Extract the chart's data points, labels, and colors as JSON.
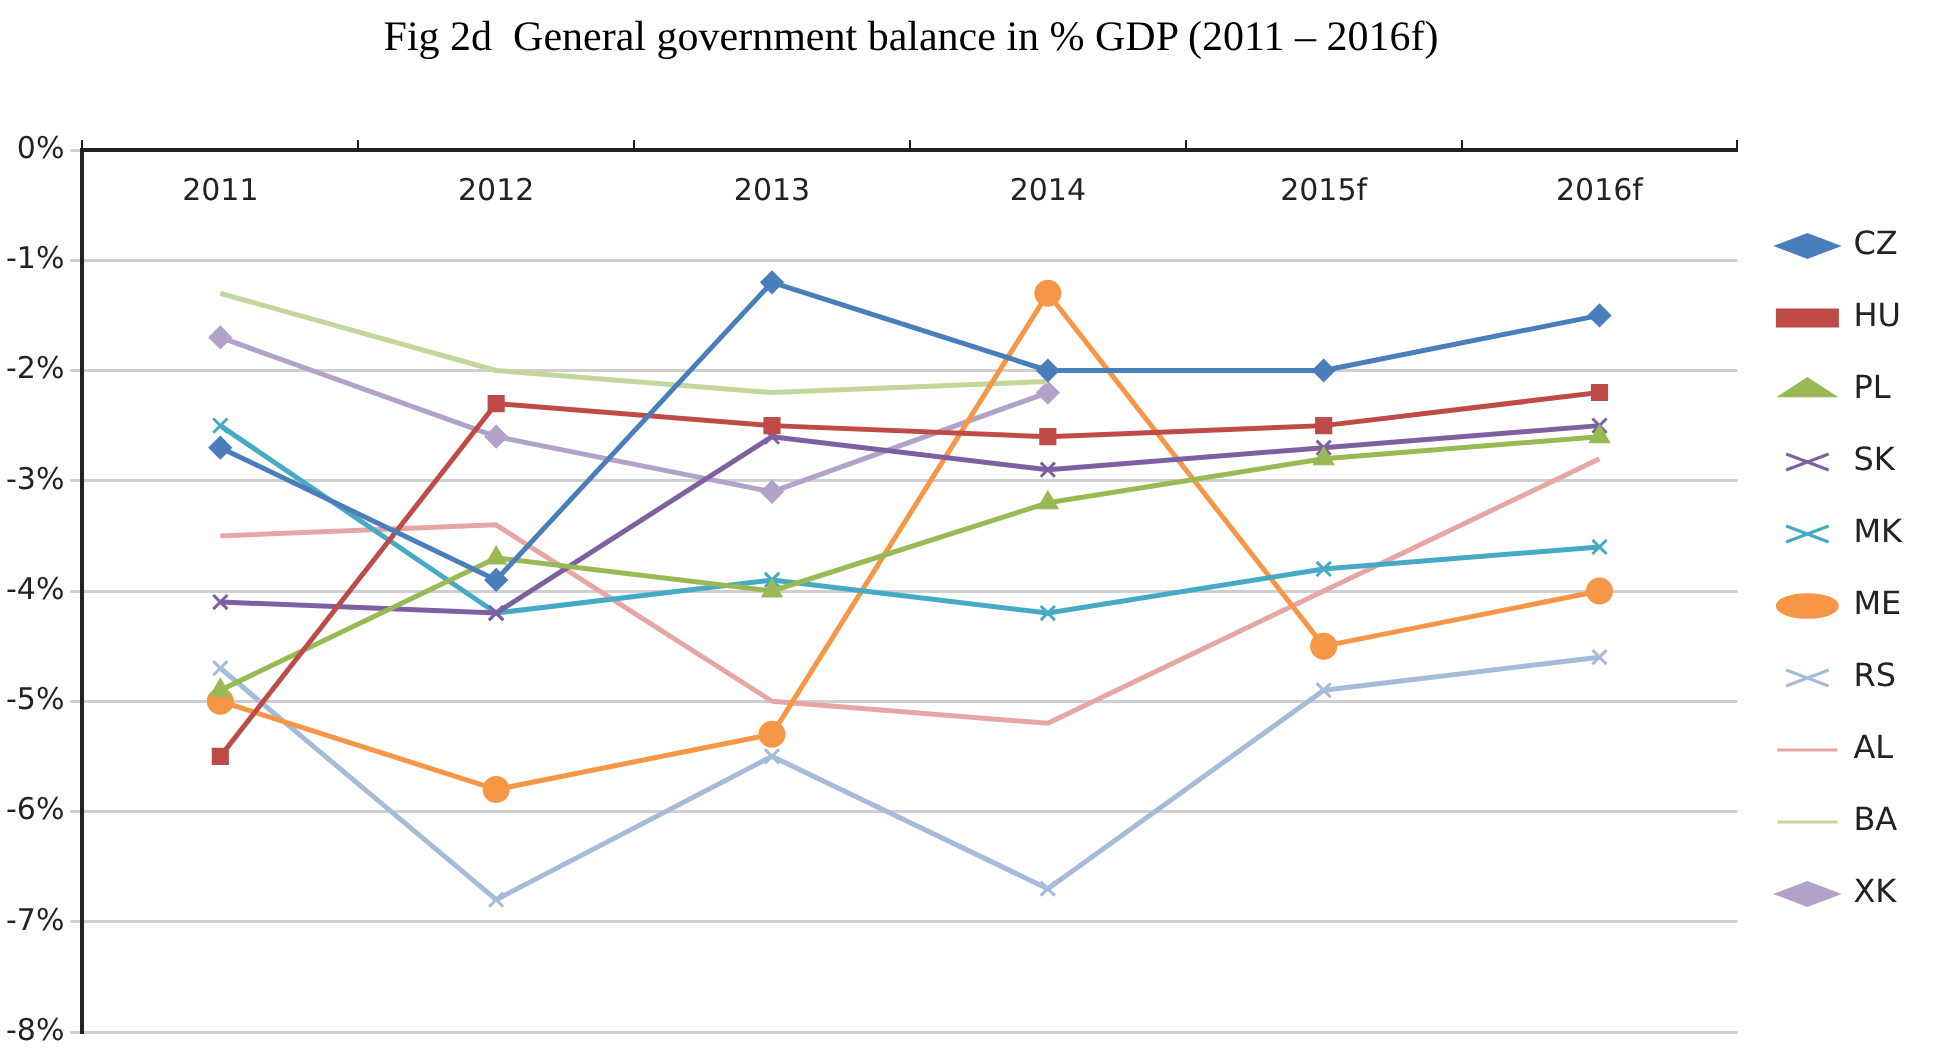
{
  "chart_data": {
    "type": "line",
    "title": "Fig 2d  General government balance in % GDP (2011 – 2016f)",
    "categories": [
      "2011",
      "2012",
      "2013",
      "2014",
      "2015f",
      "2016f"
    ],
    "ylim": [
      -8,
      0
    ],
    "yticks": [
      {
        "value": 0,
        "label": "0%"
      },
      {
        "value": -1,
        "label": "-1%"
      },
      {
        "value": -2,
        "label": "-2%"
      },
      {
        "value": -3,
        "label": "-3%"
      },
      {
        "value": -4,
        "label": "-4%"
      },
      {
        "value": -5,
        "label": "-5%"
      },
      {
        "value": -6,
        "label": "-6%"
      },
      {
        "value": -7,
        "label": "-7%"
      },
      {
        "value": -8,
        "label": "-8%"
      }
    ],
    "grid": "y",
    "legend": "right",
    "series": [
      {
        "name": "CZ",
        "color": "#4a7ebb",
        "marker": "diamond",
        "values": [
          -2.7,
          -3.9,
          -1.2,
          -2.0,
          -2.0,
          -1.5
        ]
      },
      {
        "name": "HU",
        "color": "#be4b48",
        "marker": "square",
        "values": [
          -5.5,
          -2.3,
          -2.5,
          -2.6,
          -2.5,
          -2.2
        ]
      },
      {
        "name": "PL",
        "color": "#98b954",
        "marker": "triangle",
        "values": [
          -4.9,
          -3.7,
          -4.0,
          -3.2,
          -2.8,
          -2.6
        ]
      },
      {
        "name": "SK",
        "color": "#7d60a0",
        "marker": "cross",
        "values": [
          -4.1,
          -4.2,
          -2.6,
          -2.9,
          -2.7,
          -2.5
        ]
      },
      {
        "name": "MK",
        "color": "#46aac5",
        "marker": "cross",
        "values": [
          -2.5,
          -4.2,
          -3.9,
          -4.2,
          -3.8,
          -3.6
        ]
      },
      {
        "name": "ME",
        "color": "#f79646",
        "marker": "circle",
        "values": [
          -5.0,
          -5.8,
          -5.3,
          -1.3,
          -4.5,
          -4.0
        ]
      },
      {
        "name": "RS",
        "color": "#a5bbd9",
        "marker": "cross",
        "values": [
          -4.7,
          -6.8,
          -5.5,
          -6.7,
          -4.9,
          -4.6
        ]
      },
      {
        "name": "AL",
        "color": "#e6a6a5",
        "marker": "none",
        "values": [
          -3.5,
          -3.4,
          -5.0,
          -5.2,
          -4.0,
          -2.8
        ]
      },
      {
        "name": "BA",
        "color": "#c3d69b",
        "marker": "none",
        "values": [
          -1.3,
          -2.0,
          -2.2,
          -2.1,
          null,
          null
        ]
      },
      {
        "name": "XK",
        "color": "#b3a2c7",
        "marker": "diamond",
        "values": [
          -1.7,
          -2.6,
          -3.1,
          -2.2,
          null,
          null
        ]
      }
    ]
  }
}
